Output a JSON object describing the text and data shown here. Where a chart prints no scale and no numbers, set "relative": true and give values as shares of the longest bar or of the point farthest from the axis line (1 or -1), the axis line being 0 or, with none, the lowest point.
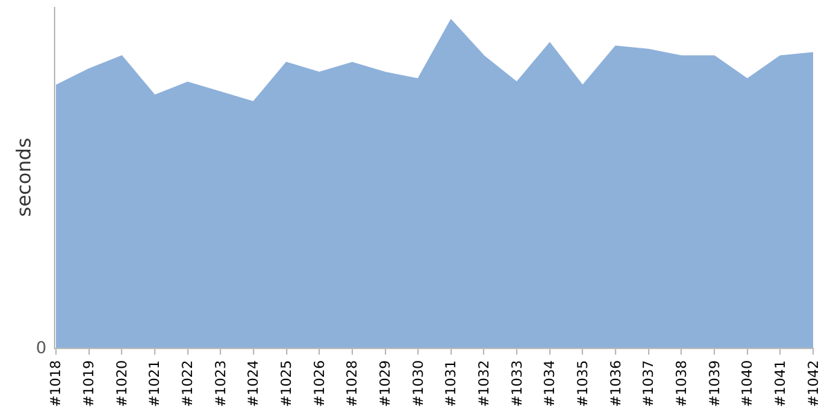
{
  "chart_data": {
    "type": "area",
    "ylabel": "seconds",
    "relative": true,
    "annotations": [
      "0"
    ],
    "categories": [
      "#1018",
      "#1019",
      "#1020",
      "#1021",
      "#1022",
      "#1023",
      "#1024",
      "#1025",
      "#1026",
      "#1028",
      "#1029",
      "#1030",
      "#1031",
      "#1032",
      "#1033",
      "#1034",
      "#1035",
      "#1036",
      "#1037",
      "#1038",
      "#1039",
      "#1040",
      "#1041",
      "#1042"
    ],
    "series": [
      {
        "color": "#8eb1da",
        "values": [
          0.8,
          0.85,
          0.89,
          0.77,
          0.81,
          0.78,
          0.75,
          0.87,
          0.84,
          0.87,
          0.84,
          0.82,
          1.0,
          0.89,
          0.81,
          0.93,
          0.8,
          0.92,
          0.91,
          0.89,
          0.89,
          0.82,
          0.89,
          0.9
        ]
      }
    ]
  }
}
